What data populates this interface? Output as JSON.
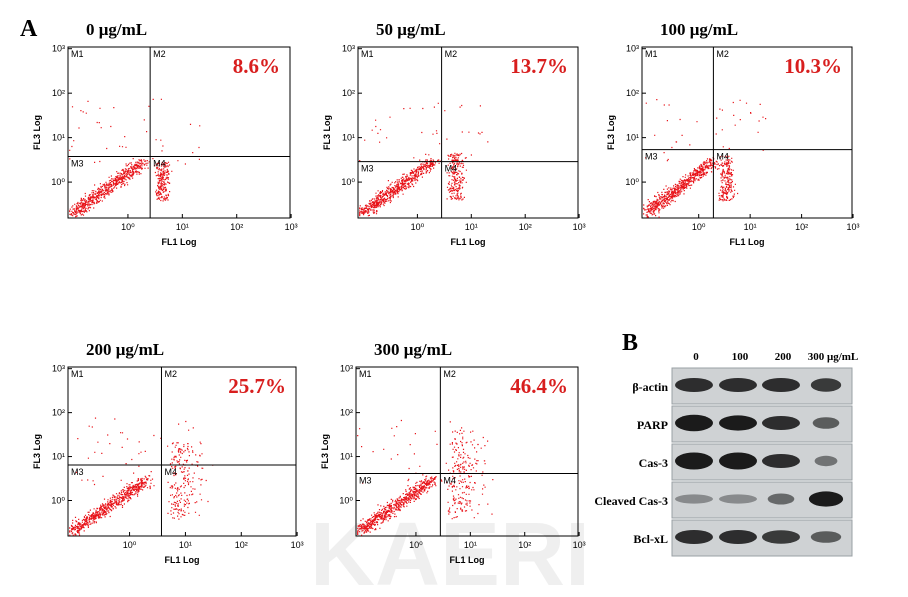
{
  "panel_a": {
    "label": "A",
    "axes": {
      "x_label": "FL1 Log",
      "y_label": "FL3 Log",
      "ticks": [
        "10⁰",
        "10¹",
        "10²",
        "10³"
      ],
      "quadrants": [
        "M1",
        "M2",
        "M3",
        "M4"
      ]
    },
    "plots": [
      {
        "title": "0 μg/mL",
        "percent": "8.6%"
      },
      {
        "title": "50 μg/mL",
        "percent": "13.7%"
      },
      {
        "title": "100 μg/mL",
        "percent": "10.3%"
      },
      {
        "title": "200 μg/mL",
        "percent": "25.7%"
      },
      {
        "title": "300 μg/mL",
        "percent": "46.4%"
      }
    ]
  },
  "panel_b": {
    "label": "B",
    "lanes": [
      "0",
      "100",
      "200",
      "300 μg/mL"
    ],
    "rows": [
      "β-actin",
      "PARP",
      "Cas-3",
      "Cleaved Cas-3",
      "Bcl-xL"
    ]
  },
  "watermark": "KAERI"
}
